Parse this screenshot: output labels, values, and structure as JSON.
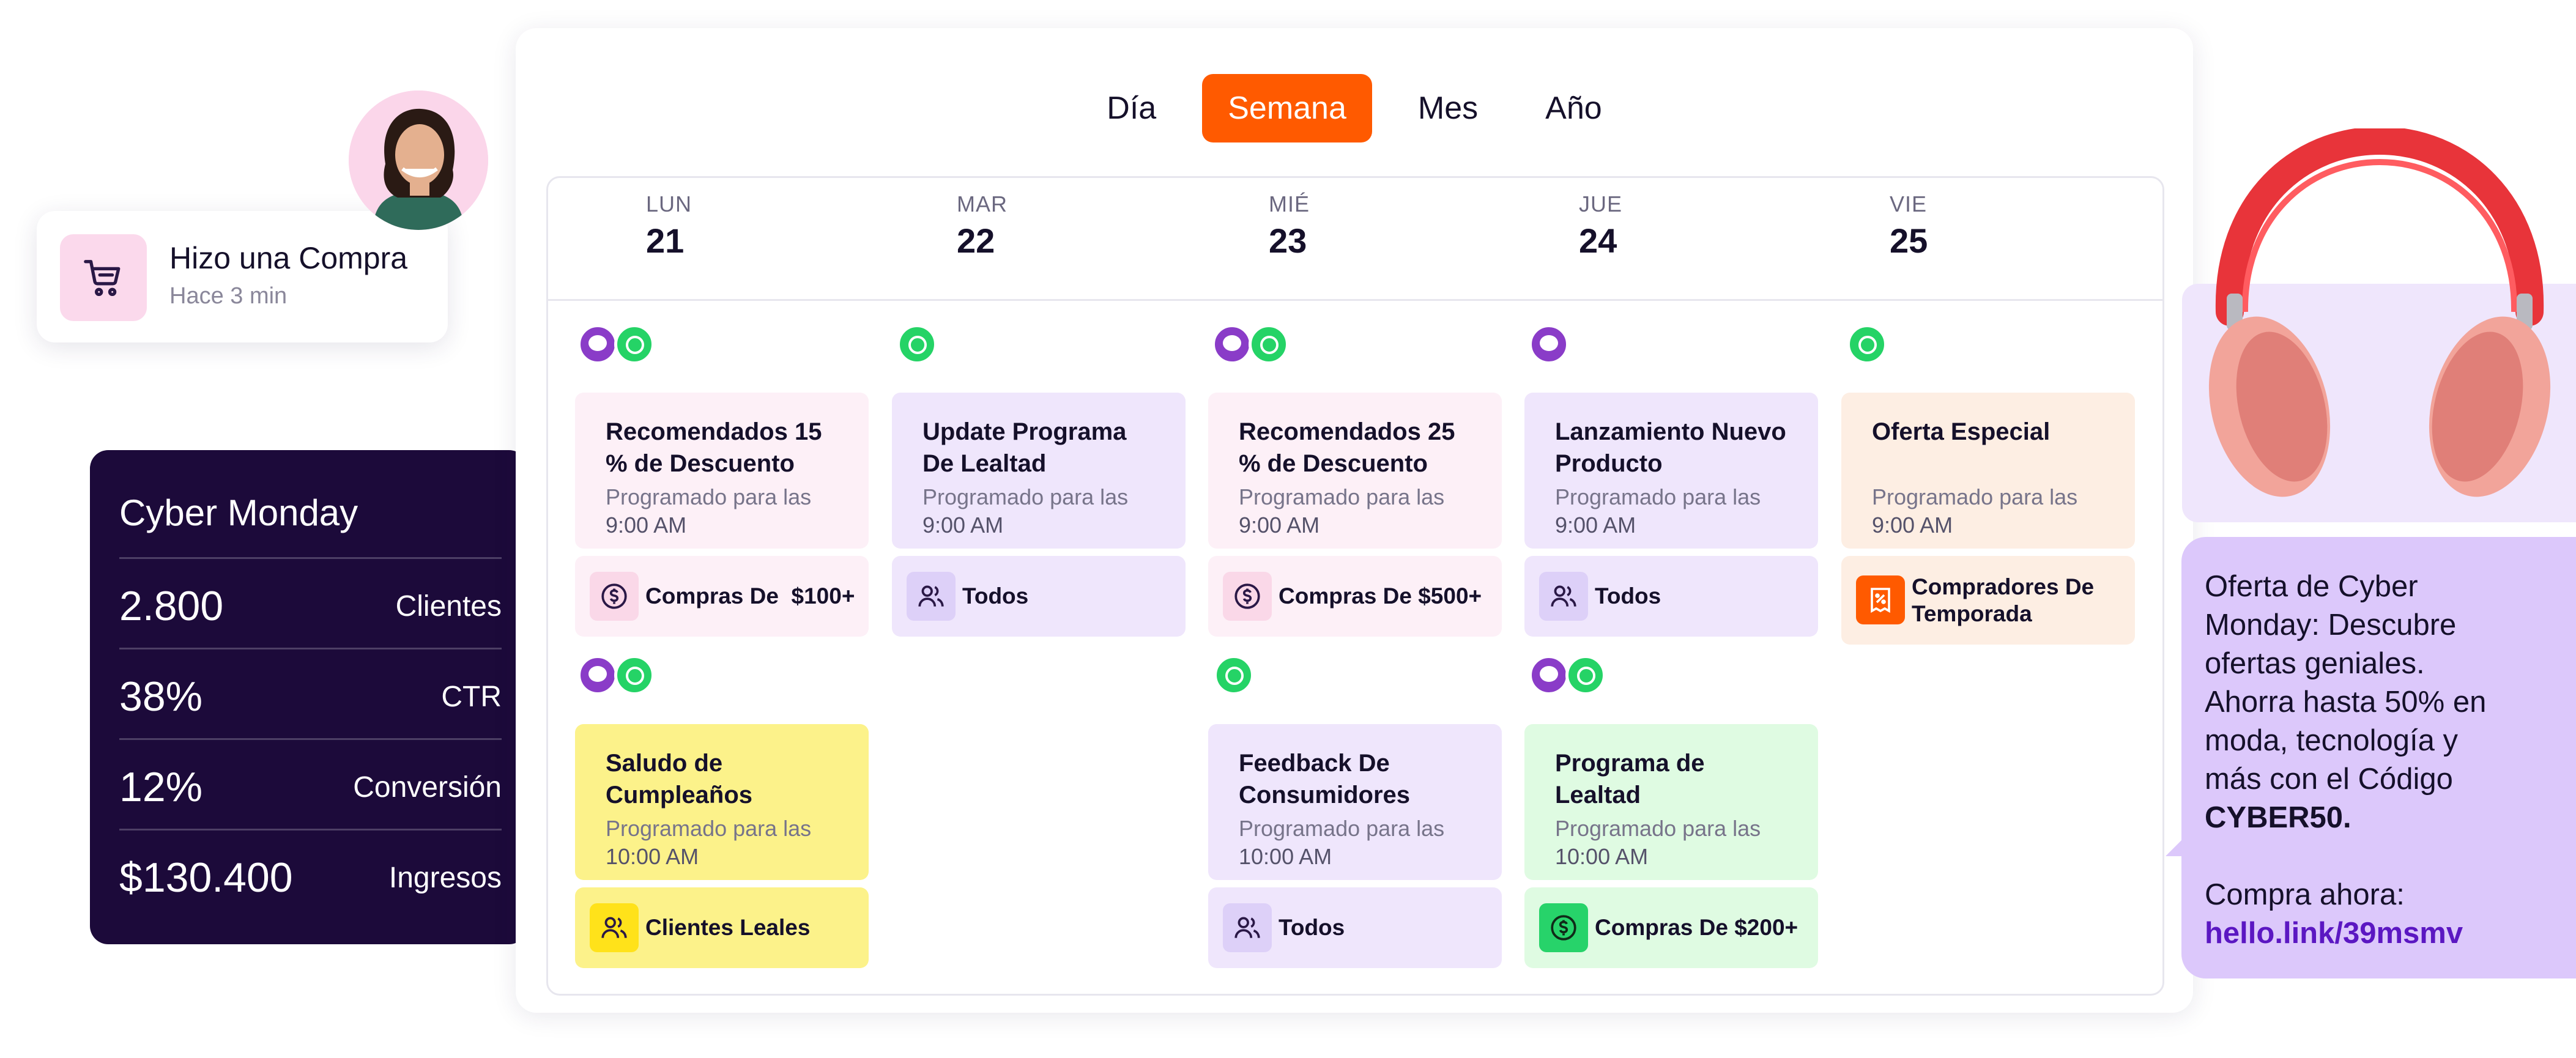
{
  "tabs": [
    {
      "label": "Día",
      "active": false
    },
    {
      "label": "Semana",
      "active": true
    },
    {
      "label": "Mes",
      "active": false
    },
    {
      "label": "Año",
      "active": false
    }
  ],
  "days": [
    {
      "dow": "LUN",
      "num": "21"
    },
    {
      "dow": "MAR",
      "num": "22"
    },
    {
      "dow": "MIÉ",
      "num": "23"
    },
    {
      "dow": "JUE",
      "num": "24"
    },
    {
      "dow": "VIE",
      "num": "25"
    }
  ],
  "scheduled_label": "Programado para las",
  "campaigns": [
    {
      "day": "LUN",
      "title_1": "Recomendados 15",
      "title_2": "% de Descuento",
      "time": "9:00 AM",
      "segment": "Compras De  $100+",
      "channels": [
        "chat-icon",
        "whatsapp-icon"
      ]
    },
    {
      "day": "MAR",
      "title_1": "Update Programa",
      "title_2": "De Lealtad",
      "time": "9:00 AM",
      "segment": "Todos",
      "channels": [
        "whatsapp-icon"
      ]
    },
    {
      "day": "MIÉ",
      "title_1": "Recomendados 25",
      "title_2": "% de Descuento",
      "time": "9:00 AM",
      "segment": "Compras De $500+",
      "channels": [
        "chat-icon",
        "whatsapp-icon"
      ]
    },
    {
      "day": "JUE",
      "title_1": "Lanzamiento Nuevo",
      "title_2": "Producto",
      "time": "9:00 AM",
      "segment": "Todos",
      "channels": [
        "chat-icon"
      ]
    },
    {
      "day": "VIE",
      "title_1": "Oferta Especial",
      "title_2": "",
      "time": "9:00 AM",
      "segment_1": "Compradores De",
      "segment_2": "Temporada",
      "channels": [
        "whatsapp-icon"
      ]
    },
    {
      "day": "LUN",
      "title_1": "Saludo de",
      "title_2": "Cumpleaños",
      "time": "10:00 AM",
      "segment": "Clientes Leales",
      "channels": [
        "chat-icon",
        "whatsapp-icon"
      ]
    },
    {
      "day": "MIÉ",
      "title_1": "Feedback De",
      "title_2": "Consumidores",
      "time": "10:00 AM",
      "segment": "Todos",
      "channels": [
        "whatsapp-icon"
      ]
    },
    {
      "day": "JUE",
      "title_1": "Programa de",
      "title_2": "Lealtad",
      "time": "10:00 AM",
      "segment": "Compras De $200+",
      "channels": [
        "chat-icon",
        "whatsapp-icon"
      ]
    }
  ],
  "notification": {
    "title": "Hizo una Compra",
    "time": "Hace 3 min",
    "icon": "cart-icon"
  },
  "stats": {
    "title": "Cyber Monday",
    "rows": [
      {
        "value": "2.800",
        "label": "Clientes"
      },
      {
        "value": "38%",
        "label": "CTR"
      },
      {
        "value": "12%",
        "label": "Conversión"
      },
      {
        "value": "$130.400",
        "label": "Ingresos"
      }
    ]
  },
  "message": {
    "line_1": "Oferta de Cyber",
    "line_2": "Monday: Descubre",
    "line_3": "ofertas geniales.",
    "line_4": "Ahorra hasta 50% en",
    "line_5": "moda, tecnología y",
    "line_6": "más con el Código",
    "code": "CYBER50.",
    "cta": "Compra ahora:",
    "link": "hello.link/39msmv"
  },
  "colors": {
    "accent": "#ff5a00",
    "stats_bg": "#1c0a3a",
    "bubble_bg": "#dcc8fb",
    "link": "#5b17c2",
    "whatsapp": "#25d366",
    "chat": "#8a3cc8"
  }
}
